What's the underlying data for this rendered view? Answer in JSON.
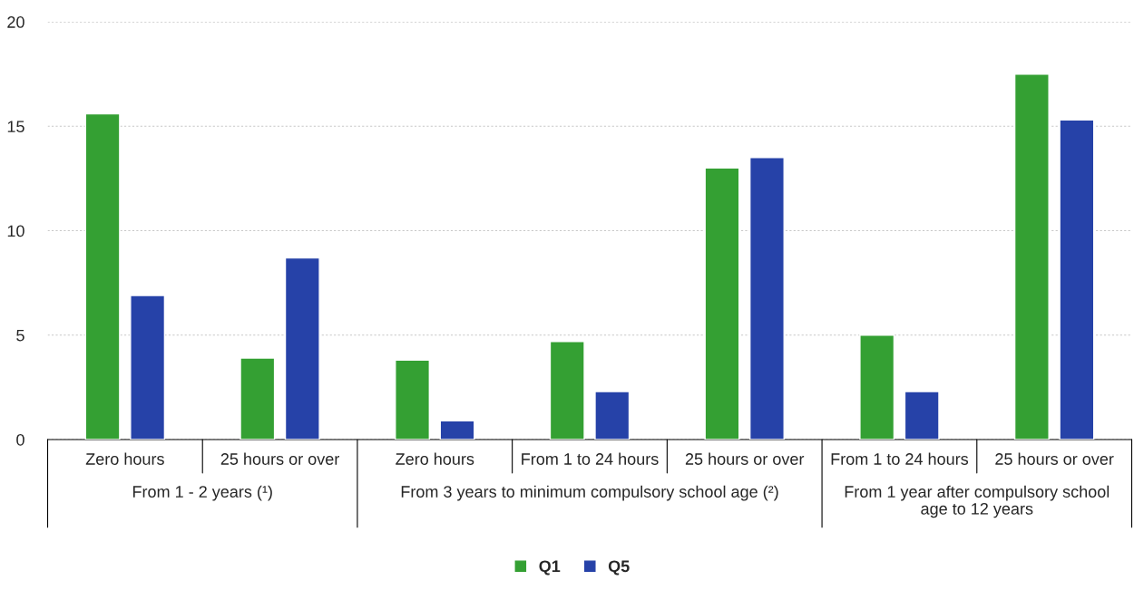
{
  "chart_data": {
    "type": "bar",
    "categories": [
      "Zero hours",
      "25 hours or over",
      "Zero hours",
      "From 1 to 24 hours",
      "25 hours or over",
      "From 1 to 24 hours",
      "25 hours or over"
    ],
    "series": [
      {
        "name": "Q1",
        "color": "#34a033",
        "values": [
          15.6,
          3.9,
          3.8,
          4.7,
          13.0,
          5.0,
          17.5
        ]
      },
      {
        "name": "Q5",
        "color": "#2642a8",
        "values": [
          6.9,
          8.7,
          0.9,
          2.3,
          13.5,
          2.3,
          15.3
        ]
      }
    ],
    "annotations": [
      "From 1 - 2 years (¹)",
      "From 3 years to minimum compulsory school age (²)",
      "From 1 year after compulsory school age to 12 years"
    ],
    "ylim": [
      0,
      20
    ],
    "yticks": [
      0,
      5,
      10,
      15,
      20
    ],
    "grid": "y",
    "legend": "bottom",
    "marker": "square"
  }
}
